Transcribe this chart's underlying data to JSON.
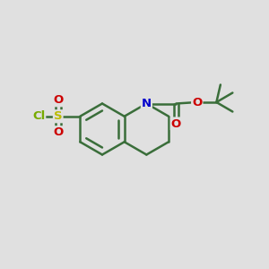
{
  "bg_color": "#e0e0e0",
  "bond_color": "#3a6e3a",
  "bond_width": 1.8,
  "atom_colors": {
    "N": "#0000cc",
    "O": "#cc0000",
    "S": "#bbbb00",
    "Cl": "#77aa00",
    "C": "#3a6e3a"
  },
  "font_size": 9.5,
  "fig_size": [
    3.0,
    3.0
  ],
  "dpi": 100
}
